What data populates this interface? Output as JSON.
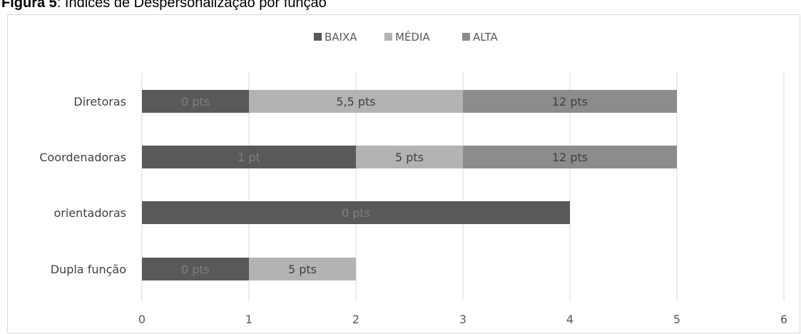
{
  "caption": {
    "label": "Figura 5",
    "text": ": Índices de Despersonalização por função"
  },
  "colors": {
    "BAIXA": "#595959",
    "MÉDIA": "#b3b3b3",
    "ALTA": "#8c8c8c"
  },
  "chart_data": {
    "type": "bar",
    "orientation": "horizontal",
    "stacked": true,
    "categories": [
      "Diretoras",
      "Coordenadoras",
      "orientadoras",
      "Dupla função"
    ],
    "series": [
      {
        "name": "BAIXA",
        "values": [
          1,
          2,
          4,
          1
        ],
        "labels": [
          "0 pts",
          "1 pt",
          "0 pts",
          "0 pts"
        ]
      },
      {
        "name": "MÉDIA",
        "values": [
          2,
          1,
          0,
          1
        ],
        "labels": [
          "5,5 pts",
          "5 pts",
          "",
          "5 pts"
        ]
      },
      {
        "name": "ALTA",
        "values": [
          2,
          2,
          0,
          0
        ],
        "labels": [
          "12 pts",
          "12 pts",
          "",
          ""
        ]
      }
    ],
    "xlim": [
      0,
      6
    ],
    "xticks": [
      "0",
      "1",
      "2",
      "3",
      "4",
      "5",
      "6"
    ],
    "grid": true,
    "legend": "top"
  }
}
